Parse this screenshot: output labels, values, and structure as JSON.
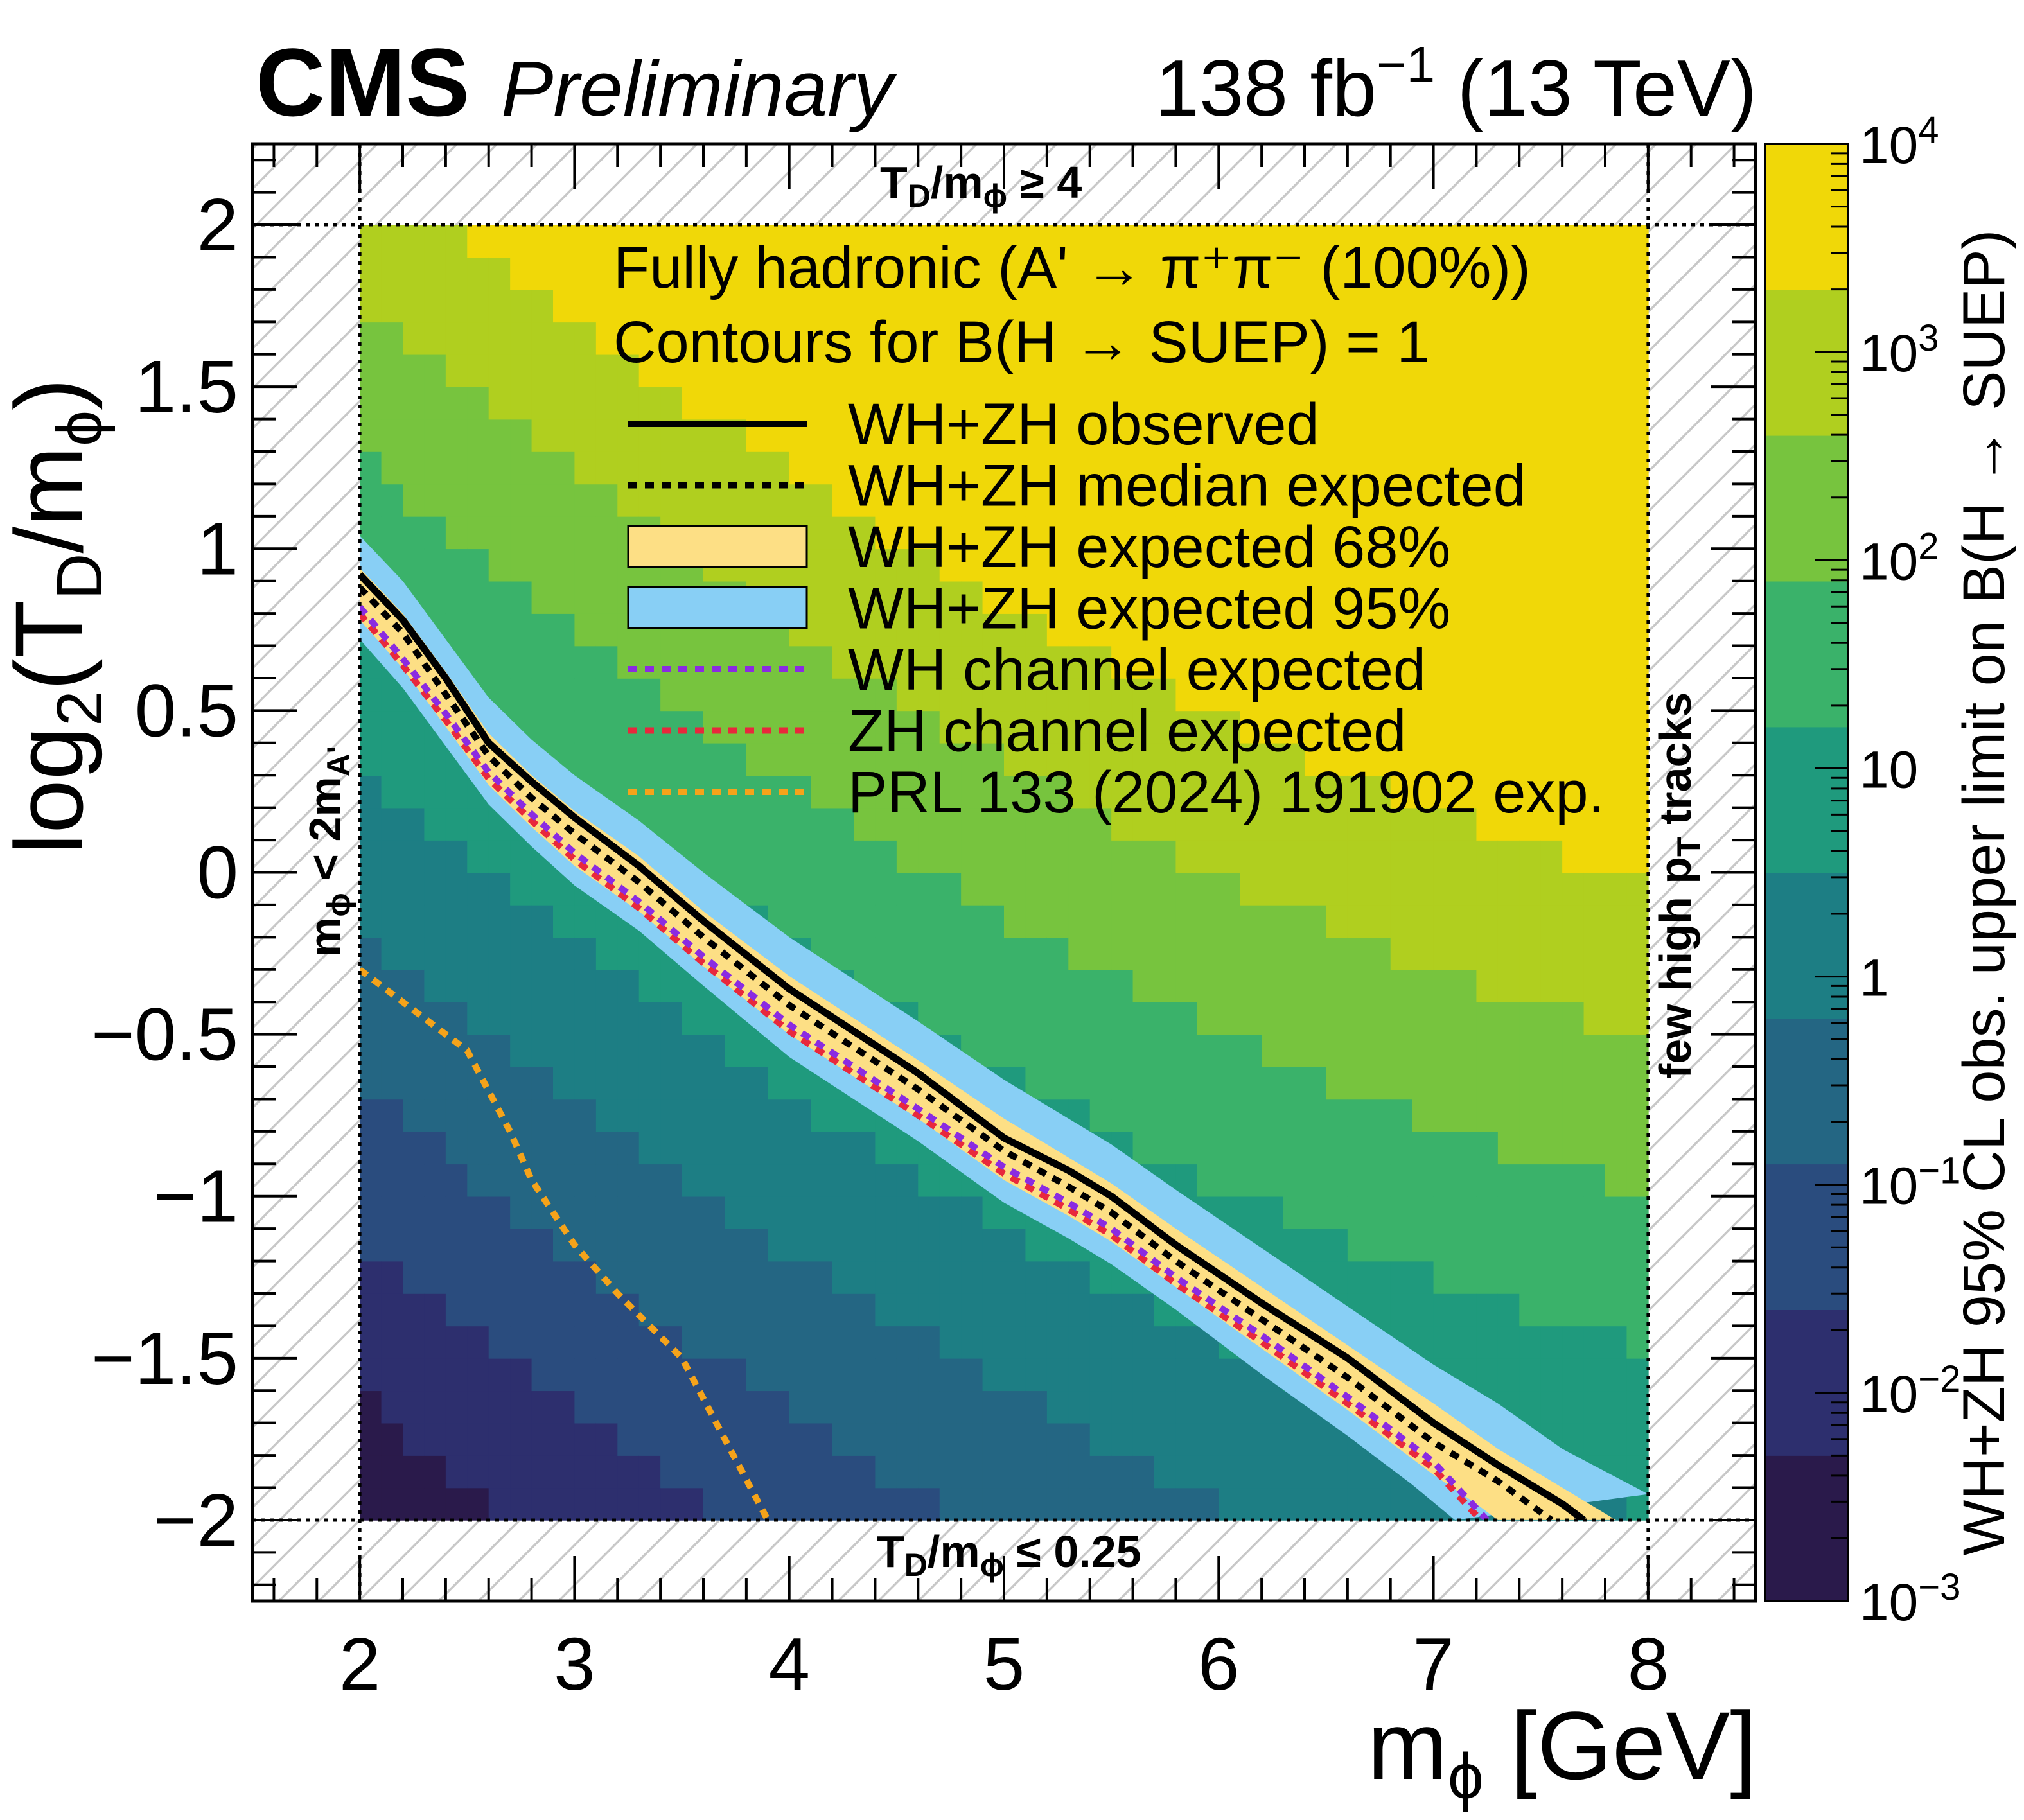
{
  "header": {
    "experiment": "CMS",
    "status": "Preliminary",
    "luminosity": "138 fb",
    "lumi_exponent": "−1",
    "energy": " (13 TeV)"
  },
  "chart_data": {
    "type": "heatmap",
    "title": "Fully hadronic (A' → π⁺π⁻ (100%)) — Contours for B(H → SUEP) = 1",
    "xlabel": "m_φ [GeV]",
    "ylabel": "log₂(T_D/m_φ)",
    "zlabel": "WH+ZH 95% CL obs. upper limit on B(H → SUEP)",
    "xlim": [
      1.5,
      8.5
    ],
    "ylim": [
      -2.25,
      2.25
    ],
    "zlim": [
      0.001,
      10000
    ],
    "zscale": "log",
    "x_ticks": [
      {
        "v": 2,
        "label": "2"
      },
      {
        "v": 3,
        "label": "3"
      },
      {
        "v": 4,
        "label": "4"
      },
      {
        "v": 5,
        "label": "5"
      },
      {
        "v": 6,
        "label": "6"
      },
      {
        "v": 7,
        "label": "7"
      },
      {
        "v": 8,
        "label": "8"
      }
    ],
    "y_ticks": [
      {
        "v": 2,
        "label": "2"
      },
      {
        "v": 1.5,
        "label": "1.5"
      },
      {
        "v": 1,
        "label": "1"
      },
      {
        "v": 0.5,
        "label": "0.5"
      },
      {
        "v": 0,
        "label": "0"
      },
      {
        "v": -0.5,
        "label": "−0.5"
      },
      {
        "v": -1,
        "label": "−1"
      },
      {
        "v": -1.5,
        "label": "−1.5"
      },
      {
        "v": -2,
        "label": "−2"
      }
    ],
    "z_ticks": [
      {
        "v": 10000,
        "base": "10",
        "exp": "4"
      },
      {
        "v": 1000,
        "base": "10",
        "exp": "3"
      },
      {
        "v": 100,
        "base": "10",
        "exp": "2"
      },
      {
        "v": 10,
        "base": "10",
        "exp": ""
      },
      {
        "v": 1,
        "base": "1",
        "exp": ""
      },
      {
        "v": 0.1,
        "base": "10",
        "exp": "−1"
      },
      {
        "v": 0.01,
        "base": "10",
        "exp": "−2"
      },
      {
        "v": 0.001,
        "base": "10",
        "exp": "−3"
      }
    ],
    "colormap": [
      "#2a1a4b",
      "#2d2f6e",
      "#2a4c7e",
      "#246683",
      "#1d7e84",
      "#1f9a7d",
      "#3ab26a",
      "#77c43e",
      "#b0cf1f",
      "#f0d808"
    ],
    "physical_region": {
      "x": [
        2,
        8
      ],
      "y": [
        -2,
        2
      ]
    },
    "region_labels": {
      "top": "T_D/m_φ ≥ 4",
      "bottom": "T_D/m_φ ≤ 0.25",
      "left": "m_φ < 2m_A'",
      "right": "few high p_T tracks"
    },
    "legend_header": [
      "Fully hadronic (A' → π⁺π⁻ (100%))",
      "Contours for B(H → SUEP) = 1"
    ],
    "legend": [
      {
        "key": "observed",
        "label": "WH+ZH observed",
        "style": "solid",
        "color": "#000000"
      },
      {
        "key": "median",
        "label": "WH+ZH median expected",
        "style": "dotted",
        "color": "#000000"
      },
      {
        "key": "band68",
        "label": "WH+ZH expected 68%",
        "style": "box",
        "color": "#fddf85"
      },
      {
        "key": "band95",
        "label": "WH+ZH expected 95%",
        "style": "box",
        "color": "#88cff5"
      },
      {
        "key": "wh",
        "label": "WH channel expected",
        "style": "dotted",
        "color": "#8a2be2"
      },
      {
        "key": "zh",
        "label": "ZH channel expected",
        "style": "dotted",
        "color": "#e8283c"
      },
      {
        "key": "prl",
        "label": "PRL 133 (2024) 191902 exp.",
        "style": "dotted",
        "color": "#f5a31a"
      }
    ],
    "curves": {
      "observed": [
        [
          2.0,
          0.92
        ],
        [
          2.2,
          0.78
        ],
        [
          2.4,
          0.6
        ],
        [
          2.6,
          0.4
        ],
        [
          2.8,
          0.28
        ],
        [
          3.0,
          0.17
        ],
        [
          3.3,
          0.02
        ],
        [
          3.6,
          -0.15
        ],
        [
          4.0,
          -0.36
        ],
        [
          4.3,
          -0.49
        ],
        [
          4.6,
          -0.62
        ],
        [
          5.0,
          -0.82
        ],
        [
          5.3,
          -0.92
        ],
        [
          5.5,
          -1.0
        ],
        [
          5.8,
          -1.15
        ],
        [
          6.2,
          -1.33
        ],
        [
          6.6,
          -1.5
        ],
        [
          7.0,
          -1.7
        ],
        [
          7.3,
          -1.83
        ],
        [
          7.6,
          -1.95
        ],
        [
          7.7,
          -2.0
        ]
      ],
      "median": [
        [
          2.0,
          0.88
        ],
        [
          2.2,
          0.74
        ],
        [
          2.4,
          0.55
        ],
        [
          2.6,
          0.36
        ],
        [
          2.8,
          0.23
        ],
        [
          3.0,
          0.12
        ],
        [
          3.3,
          -0.03
        ],
        [
          3.6,
          -0.2
        ],
        [
          4.0,
          -0.41
        ],
        [
          4.3,
          -0.54
        ],
        [
          4.6,
          -0.67
        ],
        [
          5.0,
          -0.86
        ],
        [
          5.3,
          -0.97
        ],
        [
          5.5,
          -1.05
        ],
        [
          5.8,
          -1.2
        ],
        [
          6.2,
          -1.38
        ],
        [
          6.6,
          -1.56
        ],
        [
          7.0,
          -1.76
        ],
        [
          7.3,
          -1.88
        ],
        [
          7.55,
          -2.0
        ]
      ],
      "band68_upper": [
        [
          2.0,
          0.94
        ],
        [
          2.2,
          0.8
        ],
        [
          2.4,
          0.62
        ],
        [
          2.6,
          0.43
        ],
        [
          2.8,
          0.3
        ],
        [
          3.0,
          0.19
        ],
        [
          3.3,
          0.05
        ],
        [
          3.6,
          -0.12
        ],
        [
          4.0,
          -0.32
        ],
        [
          4.3,
          -0.45
        ],
        [
          4.6,
          -0.58
        ],
        [
          5.0,
          -0.76
        ],
        [
          5.3,
          -0.88
        ],
        [
          5.5,
          -0.96
        ],
        [
          5.8,
          -1.1
        ],
        [
          6.2,
          -1.28
        ],
        [
          6.6,
          -1.46
        ],
        [
          7.0,
          -1.64
        ],
        [
          7.3,
          -1.78
        ],
        [
          7.6,
          -1.9
        ],
        [
          7.85,
          -2.0
        ]
      ],
      "band68_lower": [
        [
          2.0,
          0.78
        ],
        [
          2.2,
          0.63
        ],
        [
          2.4,
          0.45
        ],
        [
          2.6,
          0.27
        ],
        [
          2.8,
          0.14
        ],
        [
          3.0,
          0.02
        ],
        [
          3.3,
          -0.12
        ],
        [
          3.6,
          -0.29
        ],
        [
          4.0,
          -0.5
        ],
        [
          4.3,
          -0.63
        ],
        [
          4.6,
          -0.76
        ],
        [
          5.0,
          -0.95
        ],
        [
          5.3,
          -1.06
        ],
        [
          5.5,
          -1.14
        ],
        [
          5.8,
          -1.28
        ],
        [
          6.2,
          -1.47
        ],
        [
          6.6,
          -1.66
        ],
        [
          7.0,
          -1.86
        ],
        [
          7.2,
          -1.95
        ],
        [
          7.3,
          -2.0
        ]
      ],
      "band95_upper": [
        [
          2.0,
          1.04
        ],
        [
          2.2,
          0.9
        ],
        [
          2.4,
          0.72
        ],
        [
          2.6,
          0.54
        ],
        [
          2.8,
          0.41
        ],
        [
          3.0,
          0.3
        ],
        [
          3.3,
          0.16
        ],
        [
          3.6,
          0.0
        ],
        [
          4.0,
          -0.2
        ],
        [
          4.3,
          -0.33
        ],
        [
          4.6,
          -0.46
        ],
        [
          5.0,
          -0.64
        ],
        [
          5.3,
          -0.76
        ],
        [
          5.5,
          -0.84
        ],
        [
          5.8,
          -0.98
        ],
        [
          6.2,
          -1.16
        ],
        [
          6.6,
          -1.34
        ],
        [
          7.0,
          -1.52
        ],
        [
          7.3,
          -1.64
        ],
        [
          7.6,
          -1.78
        ],
        [
          8.0,
          -1.92
        ]
      ],
      "band95_lower": [
        [
          2.0,
          0.72
        ],
        [
          2.2,
          0.57
        ],
        [
          2.4,
          0.39
        ],
        [
          2.6,
          0.21
        ],
        [
          2.8,
          0.08
        ],
        [
          3.0,
          -0.04
        ],
        [
          3.3,
          -0.18
        ],
        [
          3.6,
          -0.35
        ],
        [
          4.0,
          -0.57
        ],
        [
          4.3,
          -0.7
        ],
        [
          4.6,
          -0.83
        ],
        [
          5.0,
          -1.02
        ],
        [
          5.3,
          -1.13
        ],
        [
          5.5,
          -1.21
        ],
        [
          5.8,
          -1.35
        ],
        [
          6.2,
          -1.55
        ],
        [
          6.6,
          -1.74
        ],
        [
          6.9,
          -1.89
        ],
        [
          7.1,
          -2.0
        ]
      ],
      "wh": [
        [
          2.0,
          0.82
        ],
        [
          2.2,
          0.66
        ],
        [
          2.4,
          0.49
        ],
        [
          2.6,
          0.31
        ],
        [
          2.8,
          0.18
        ],
        [
          3.0,
          0.06
        ],
        [
          3.3,
          -0.09
        ],
        [
          3.6,
          -0.26
        ],
        [
          4.0,
          -0.47
        ],
        [
          4.3,
          -0.6
        ],
        [
          4.6,
          -0.73
        ],
        [
          5.0,
          -0.91
        ],
        [
          5.3,
          -1.02
        ],
        [
          5.5,
          -1.1
        ],
        [
          5.8,
          -1.25
        ],
        [
          6.2,
          -1.43
        ],
        [
          6.6,
          -1.62
        ],
        [
          7.0,
          -1.82
        ],
        [
          7.25,
          -2.0
        ]
      ],
      "zh": [
        [
          2.0,
          0.8
        ],
        [
          2.2,
          0.64
        ],
        [
          2.4,
          0.47
        ],
        [
          2.6,
          0.29
        ],
        [
          2.8,
          0.16
        ],
        [
          3.0,
          0.04
        ],
        [
          3.3,
          -0.11
        ],
        [
          3.6,
          -0.28
        ],
        [
          4.0,
          -0.49
        ],
        [
          4.3,
          -0.62
        ],
        [
          4.6,
          -0.75
        ],
        [
          5.0,
          -0.93
        ],
        [
          5.3,
          -1.04
        ],
        [
          5.5,
          -1.12
        ],
        [
          5.8,
          -1.27
        ],
        [
          6.2,
          -1.45
        ],
        [
          6.6,
          -1.64
        ],
        [
          7.0,
          -1.84
        ],
        [
          7.22,
          -2.0
        ]
      ],
      "prl": [
        [
          2.0,
          -0.3
        ],
        [
          2.3,
          -0.45
        ],
        [
          2.5,
          -0.55
        ],
        [
          2.7,
          -0.8
        ],
        [
          2.8,
          -0.95
        ],
        [
          3.0,
          -1.15
        ],
        [
          3.2,
          -1.3
        ],
        [
          3.5,
          -1.5
        ],
        [
          3.7,
          -1.75
        ],
        [
          3.9,
          -2.0
        ]
      ]
    }
  }
}
